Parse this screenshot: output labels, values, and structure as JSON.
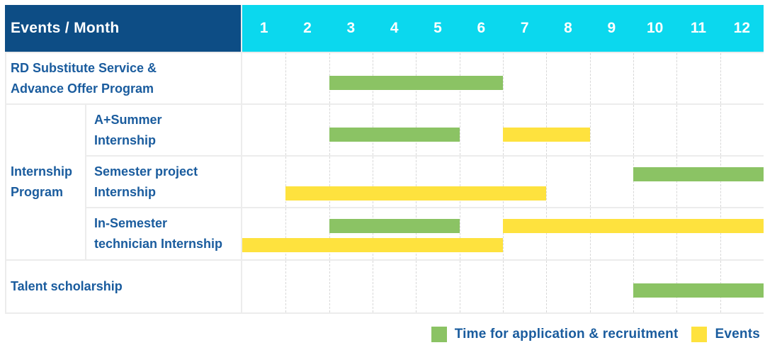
{
  "colors": {
    "header_bg": "#0d4d85",
    "months_bg": "#0bd8ee",
    "application": "#8bc364",
    "events": "#fee23e",
    "label_text": "#1a5c9e",
    "grid_line": "#ececec",
    "divider_line": "#d8d8d8"
  },
  "header": {
    "title": "Events / Month",
    "months": [
      "1",
      "2",
      "3",
      "4",
      "5",
      "6",
      "7",
      "8",
      "9",
      "10",
      "11",
      "12"
    ]
  },
  "group": {
    "label_lines": [
      "Internship",
      "Program"
    ]
  },
  "rows": [
    {
      "id": "rd-substitute-service",
      "type": "full",
      "label_lines": [
        "RD Substitute Service &",
        "Advance Offer Program"
      ],
      "bars": [
        {
          "kind": "application",
          "start": 3,
          "end": 6,
          "lane": "single"
        }
      ]
    },
    {
      "id": "a-plus-summer-internship",
      "type": "sub",
      "label_lines": [
        "A+Summer",
        "Internship"
      ],
      "bars": [
        {
          "kind": "application",
          "start": 3,
          "end": 5,
          "lane": "single"
        },
        {
          "kind": "events",
          "start": 7,
          "end": 8,
          "lane": "single"
        }
      ]
    },
    {
      "id": "semester-project-internship",
      "type": "sub",
      "label_lines": [
        "Semester project",
        "Internship"
      ],
      "bars": [
        {
          "kind": "application",
          "start": 10,
          "end": 12,
          "lane": "top"
        },
        {
          "kind": "events",
          "start": 2,
          "end": 7,
          "lane": "bottom"
        }
      ]
    },
    {
      "id": "in-semester-technician-internship",
      "type": "sub",
      "label_lines": [
        "In-Semester",
        "technician Internship"
      ],
      "bars": [
        {
          "kind": "application",
          "start": 3,
          "end": 5,
          "lane": "top"
        },
        {
          "kind": "events",
          "start": 7,
          "end": 12,
          "lane": "top"
        },
        {
          "kind": "events",
          "start": 1,
          "end": 6,
          "lane": "bottom"
        }
      ]
    },
    {
      "id": "talent-scholarship",
      "type": "full",
      "label_lines": [
        "Talent scholarship"
      ],
      "bars": [
        {
          "kind": "application",
          "start": 10,
          "end": 12,
          "lane": "single"
        }
      ]
    }
  ],
  "legend": [
    {
      "kind": "application",
      "label": "Time for application & recruitment"
    },
    {
      "kind": "events",
      "label": "Events"
    }
  ],
  "chart_data": {
    "type": "bar",
    "variant": "gantt",
    "title": "Events / Month",
    "x_axis": {
      "label": "Month",
      "ticks": [
        1,
        2,
        3,
        4,
        5,
        6,
        7,
        8,
        9,
        10,
        11,
        12
      ],
      "range": [
        1,
        12
      ]
    },
    "grid": true,
    "legend_position": "bottom-right",
    "series_legend": [
      "Time for application & recruitment",
      "Events"
    ],
    "tasks": [
      {
        "name": "RD Substitute Service & Advance Offer Program",
        "group": null,
        "spans": [
          {
            "series": "Time for application & recruitment",
            "start_month": 3,
            "end_month": 6
          }
        ]
      },
      {
        "name": "A+Summer Internship",
        "group": "Internship Program",
        "spans": [
          {
            "series": "Time for application & recruitment",
            "start_month": 3,
            "end_month": 5
          },
          {
            "series": "Events",
            "start_month": 7,
            "end_month": 8
          }
        ]
      },
      {
        "name": "Semester project Internship",
        "group": "Internship Program",
        "spans": [
          {
            "series": "Time for application & recruitment",
            "start_month": 10,
            "end_month": 12
          },
          {
            "series": "Events",
            "start_month": 2,
            "end_month": 7
          }
        ]
      },
      {
        "name": "In-Semester technician Internship",
        "group": "Internship Program",
        "spans": [
          {
            "series": "Time for application & recruitment",
            "start_month": 3,
            "end_month": 5
          },
          {
            "series": "Events",
            "start_month": 7,
            "end_month": 12
          },
          {
            "series": "Events",
            "start_month": 1,
            "end_month": 6
          }
        ]
      },
      {
        "name": "Talent scholarship",
        "group": null,
        "spans": [
          {
            "series": "Time for application & recruitment",
            "start_month": 10,
            "end_month": 12
          }
        ]
      }
    ]
  }
}
